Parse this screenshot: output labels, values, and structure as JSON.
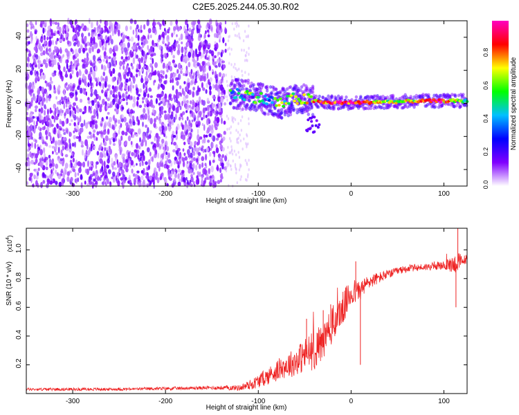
{
  "page_title": "C2E5.2025.244.05.30.R02",
  "chart_data": [
    {
      "type": "heatmap",
      "title": "C2E5.2025.244.05.30.R02",
      "xlabel": "Height of straight line (km)",
      "ylabel": "Frequency (Hz)",
      "xlim": [
        -350,
        125
      ],
      "ylim": [
        -50,
        50
      ],
      "x_ticks": [
        -300,
        -200,
        -100,
        0,
        100
      ],
      "x_tick_labels": [
        "-300",
        "-200",
        "-100",
        "0",
        "100"
      ],
      "y_ticks": [
        -40,
        -20,
        0,
        20,
        40
      ],
      "y_tick_labels": [
        "-40",
        "-20",
        "0",
        "20",
        "40"
      ],
      "noise_region_x": [
        -350,
        -135
      ],
      "signal_track": {
        "x": [
          -130,
          -110,
          -90,
          -75,
          -60,
          -45,
          -30,
          -10,
          10,
          30,
          50,
          70,
          90,
          110,
          125
        ],
        "frequency": [
          6,
          5,
          2,
          0,
          3,
          2,
          0.5,
          0.5,
          0.5,
          1,
          1,
          1.5,
          1.5,
          1.5,
          1.5
        ],
        "amplitude": [
          0.45,
          0.55,
          0.45,
          0.6,
          0.6,
          0.7,
          0.85,
          0.9,
          0.9,
          0.7,
          0.6,
          0.65,
          0.95,
          0.7,
          0.5
        ]
      },
      "colorbar": {
        "label": "Normalized spectral amplitude",
        "range": [
          0,
          1
        ],
        "ticks": [
          0.0,
          0.2,
          0.4,
          0.6,
          0.8
        ],
        "tick_labels": [
          "0.0",
          "0.2",
          "0.4",
          "0.6",
          "0.8"
        ],
        "colors": [
          "#ffffff",
          "#8000ff",
          "#0000ff",
          "#00c0ff",
          "#00ff00",
          "#ffff00",
          "#ff0000",
          "#ff00c0"
        ]
      }
    },
    {
      "type": "line",
      "xlabel": "Height of straight line (km)",
      "ylabel": "SNR (10 * v/v)",
      "y_multiplier": "(x10",
      "y_multiplier_exp": "4",
      "y_multiplier_close": ")",
      "xlim": [
        -350,
        125
      ],
      "ylim": [
        0,
        1.15
      ],
      "x_ticks": [
        -300,
        -200,
        -100,
        0,
        100
      ],
      "x_tick_labels": [
        "-300",
        "-200",
        "-100",
        "0",
        "100"
      ],
      "y_ticks": [
        0.2,
        0.4,
        0.6,
        0.8,
        1.0
      ],
      "y_tick_labels": [
        "0.2",
        "0.4",
        "0.6",
        "0.8",
        "1.0"
      ],
      "series": [
        {
          "name": "SNR",
          "color": "#ee2222",
          "x": [
            -350,
            -250,
            -150,
            -120,
            -105,
            -90,
            -75,
            -60,
            -50,
            -40,
            -30,
            -20,
            -10,
            0,
            10,
            20,
            40,
            60,
            80,
            100,
            110,
            115,
            120,
            125
          ],
          "y": [
            0.03,
            0.03,
            0.04,
            0.04,
            0.07,
            0.12,
            0.18,
            0.22,
            0.27,
            0.3,
            0.36,
            0.48,
            0.58,
            0.7,
            0.72,
            0.78,
            0.83,
            0.87,
            0.88,
            0.89,
            0.9,
            0.91,
            0.92,
            0.94
          ],
          "noise": [
            0.01,
            0.01,
            0.012,
            0.02,
            0.04,
            0.06,
            0.08,
            0.1,
            0.12,
            0.14,
            0.14,
            0.13,
            0.12,
            0.1,
            0.07,
            0.05,
            0.03,
            0.025,
            0.025,
            0.03,
            0.06,
            0.08,
            0.04,
            0.03
          ]
        }
      ]
    }
  ]
}
